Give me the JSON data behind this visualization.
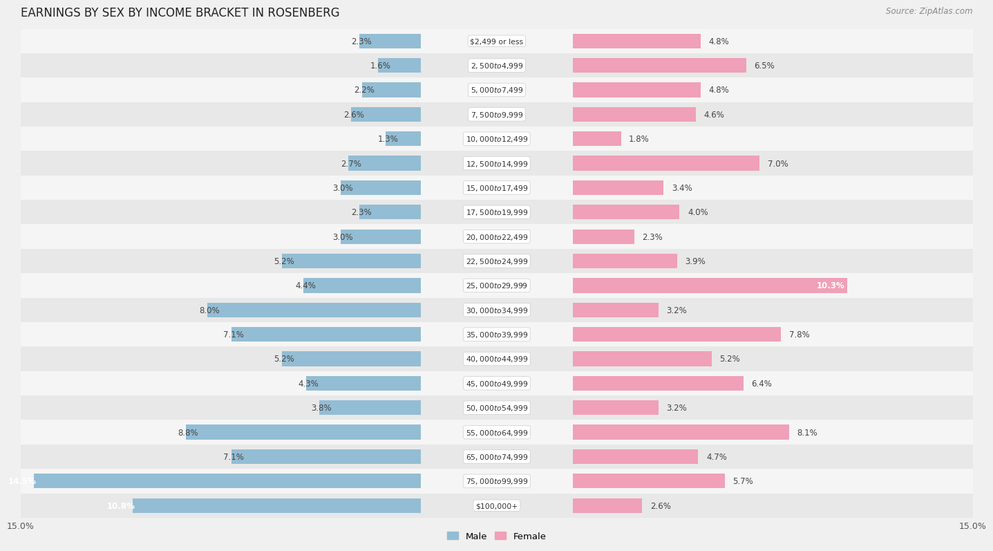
{
  "title": "EARNINGS BY SEX BY INCOME BRACKET IN ROSENBERG",
  "source": "Source: ZipAtlas.com",
  "categories": [
    "$2,499 or less",
    "$2,500 to $4,999",
    "$5,000 to $7,499",
    "$7,500 to $9,999",
    "$10,000 to $12,499",
    "$12,500 to $14,999",
    "$15,000 to $17,499",
    "$17,500 to $19,999",
    "$20,000 to $22,499",
    "$22,500 to $24,999",
    "$25,000 to $29,999",
    "$30,000 to $34,999",
    "$35,000 to $39,999",
    "$40,000 to $44,999",
    "$45,000 to $49,999",
    "$50,000 to $54,999",
    "$55,000 to $64,999",
    "$65,000 to $74,999",
    "$75,000 to $99,999",
    "$100,000+"
  ],
  "male_values": [
    2.3,
    1.6,
    2.2,
    2.6,
    1.3,
    2.7,
    3.0,
    2.3,
    3.0,
    5.2,
    4.4,
    8.0,
    7.1,
    5.2,
    4.3,
    3.8,
    8.8,
    7.1,
    14.5,
    10.8
  ],
  "female_values": [
    4.8,
    6.5,
    4.8,
    4.6,
    1.8,
    7.0,
    3.4,
    4.0,
    2.3,
    3.9,
    10.3,
    3.2,
    7.8,
    5.2,
    6.4,
    3.2,
    8.1,
    4.7,
    5.7,
    2.6
  ],
  "male_color": "#93bdd4",
  "female_color": "#f0a0b8",
  "label_text_color": "#444444",
  "special_male_indices": [
    18,
    19
  ],
  "special_female_indices": [
    10
  ],
  "row_colors": [
    "#f5f5f5",
    "#e8e8e8"
  ],
  "bg_color": "#f0f0f0",
  "axis_max": 15.0,
  "legend_male": "Male",
  "legend_female": "Female"
}
